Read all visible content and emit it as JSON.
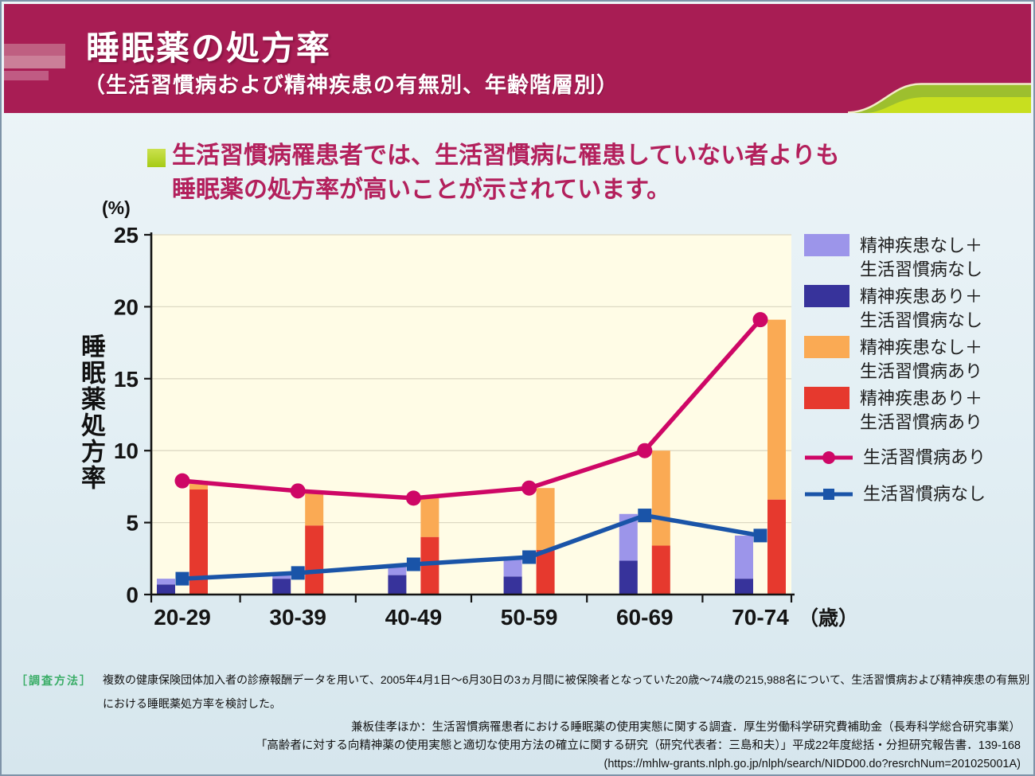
{
  "header": {
    "title": "睡眠薬の処方率",
    "subtitle": "（生活習慣病および精神疾患の有無別、年齢階層別）"
  },
  "key_message": {
    "line1": "生活習慣病罹患者では、生活習慣病に罹患していない者よりも",
    "line2": "睡眠薬の処方率が高いことが示されています。"
  },
  "chart_data": {
    "type": "bar",
    "title": "",
    "categories": [
      "20-29",
      "30-39",
      "40-49",
      "50-59",
      "60-69",
      "70-74"
    ],
    "x_unit": "（歳）",
    "y_unit": "(%)",
    "ylabel": "睡眠薬処方率",
    "ylim": [
      0,
      25
    ],
    "yticks": [
      0,
      5,
      10,
      15,
      20,
      25
    ],
    "grid": true,
    "legend_position": "right",
    "plot_bg": "#fffce6",
    "grid_color": "#ddd9c3",
    "axis_color": "#141414",
    "bar_stacks": [
      {
        "id": "no_lifestyle",
        "segments": [
          {
            "label": "精神疾患あり＋生活習慣病なし",
            "color": "#37339b",
            "values": [
              0.7,
              1.1,
              1.35,
              1.25,
              2.35,
              1.1
            ]
          },
          {
            "label": "精神疾患なし＋生活習慣病なし",
            "color": "#9c95ea",
            "values": [
              0.4,
              0.45,
              0.7,
              1.3,
              3.25,
              3.0
            ]
          }
        ]
      },
      {
        "id": "lifestyle",
        "segments": [
          {
            "label": "精神疾患あり＋生活習慣病あり",
            "color": "#e6392e",
            "values": [
              7.3,
              4.8,
              4.0,
              3.1,
              3.4,
              6.6
            ]
          },
          {
            "label": "精神疾患なし＋生活習慣病あり",
            "color": "#faaa54",
            "values": [
              0.6,
              2.4,
              2.7,
              4.3,
              6.6,
              12.5
            ]
          }
        ]
      }
    ],
    "lines": [
      {
        "label": "生活習慣病あり",
        "color": "#ce0766",
        "marker": "circle",
        "values": [
          7.9,
          7.2,
          6.7,
          7.4,
          10.0,
          19.1
        ]
      },
      {
        "label": "生活習慣病なし",
        "color": "#1a54a8",
        "marker": "square",
        "values": [
          1.1,
          1.5,
          2.1,
          2.6,
          5.5,
          4.1
        ]
      }
    ]
  },
  "legend": {
    "items": [
      {
        "line1": "精神疾患なし＋",
        "line2": "生活習慣病なし",
        "color": "#9c95ea"
      },
      {
        "line1": "精神疾患あり＋",
        "line2": "生活習慣病なし",
        "color": "#37339b"
      },
      {
        "line1": "精神疾患なし＋",
        "line2": "生活習慣病あり",
        "color": "#faaa54"
      },
      {
        "line1": "精神疾患あり＋",
        "line2": "生活習慣病あり",
        "color": "#e6392e"
      }
    ],
    "line_items": [
      {
        "label": "生活習慣病あり",
        "color": "#ce0766",
        "marker": "circle"
      },
      {
        "label": "生活習慣病なし",
        "color": "#1a54a8",
        "marker": "square"
      }
    ]
  },
  "footer": {
    "method_label": "［調査方法］",
    "method_lines": [
      "複数の健康保険団体加入者の診療報酬データを用いて、2005年4月1日～6月30日の3ヵ月間に被保険者となっていた20歳～74歳の215,988名について、生活習慣病および精神疾患の有無別",
      "における睡眠薬処方率を検討した。"
    ],
    "citation_lines": [
      "兼板佳孝ほか：生活習慣病罹患者における睡眠薬の使用実態に関する調査．厚生労働科学研究費補助金（長寿科学総合研究事業）",
      "「高齢者に対する向精神薬の使用実態と適切な使用方法の確立に関する研究（研究代表者：三島和夫）」平成22年度総括・分担研究報告書．139-168",
      "(https://mhlw-grants.nlph.go.jp/nlph/search/NIDD00.do?resrchNum=201025001A)"
    ]
  },
  "colors": {
    "header_bg": "#a81d54",
    "headline_text": "#b3205c",
    "bullet_green_top": "#cbe14e",
    "bullet_green_bottom": "#a6cb15",
    "method_label_green": "#3aad67",
    "swoosh_olive": "#9dbf2e",
    "swoosh_bright": "#c8df1f",
    "swoosh_cream": "#f2ecc8"
  }
}
